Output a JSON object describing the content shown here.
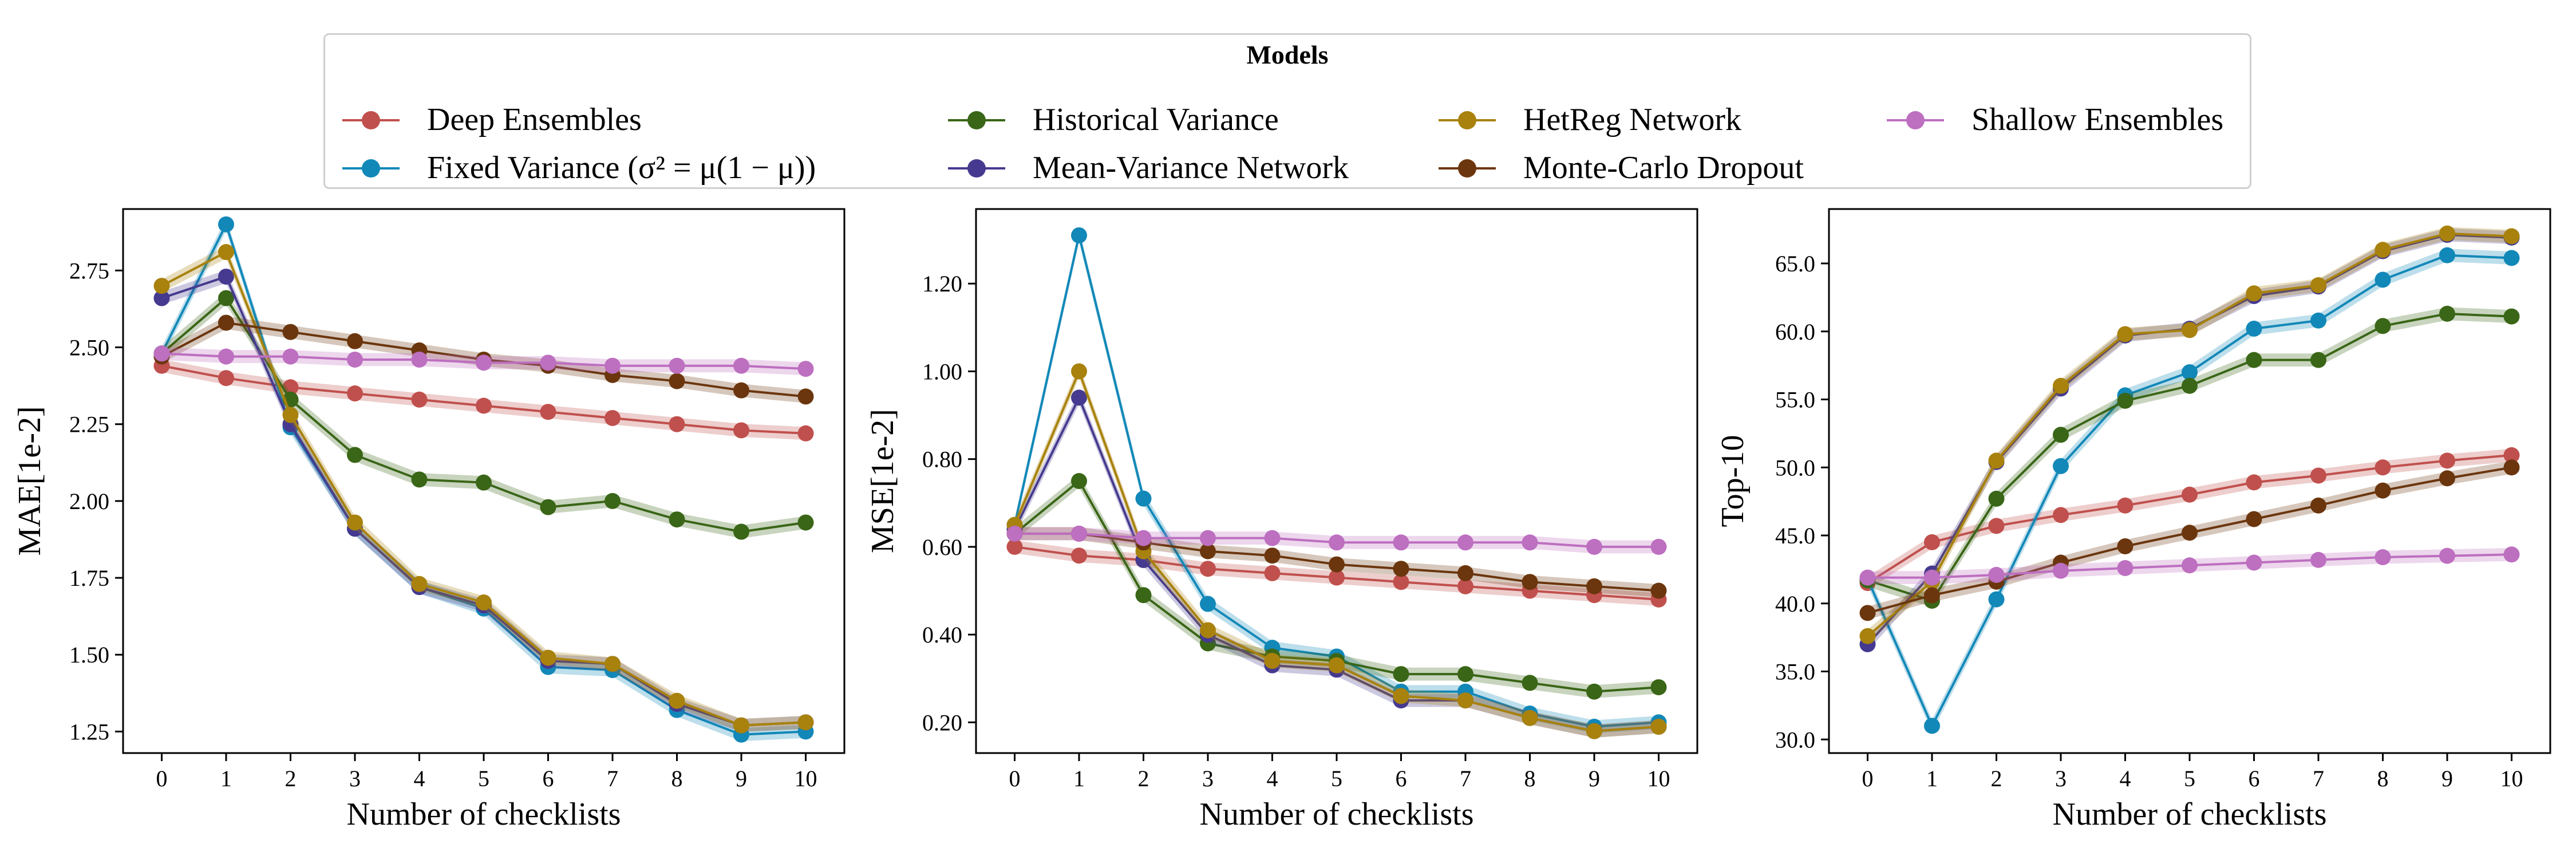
{
  "legend": {
    "title": "Models",
    "entries": [
      {
        "key": "deep",
        "label": "Deep Ensembles"
      },
      {
        "key": "fixed",
        "label": "Fixed Variance (σ² = μ(1 − μ))"
      },
      {
        "key": "hist",
        "label": "Historical Variance"
      },
      {
        "key": "mvn",
        "label": "Mean-Variance Network"
      },
      {
        "key": "hetreg",
        "label": "HetReg Network"
      },
      {
        "key": "mcd",
        "label": "Monte-Carlo Dropout"
      },
      {
        "key": "shallow",
        "label": "Shallow Ensembles"
      }
    ]
  },
  "colors": {
    "deep": "#c0504d",
    "fixed": "#1288b8",
    "hist": "#3a6617",
    "mvn": "#453a8f",
    "hetreg": "#a8820d",
    "mcd": "#6b360e",
    "shallow": "#bd6fc0"
  },
  "chart_data": [
    {
      "type": "line",
      "xlabel": "Number of checklists",
      "ylabel": "MAE[1e-2]",
      "x": [
        0,
        1,
        2,
        3,
        4,
        5,
        6,
        7,
        8,
        9,
        10
      ],
      "xticks": [
        "0",
        "1",
        "2",
        "3",
        "4",
        "5",
        "6",
        "7",
        "8",
        "9",
        "10"
      ],
      "ylim": [
        1.18,
        2.95
      ],
      "yticks": [
        1.25,
        1.5,
        1.75,
        2.0,
        2.25,
        2.5,
        2.75
      ],
      "ytick_labels": [
        "1.25",
        "1.50",
        "1.75",
        "2.00",
        "2.25",
        "2.50",
        "2.75"
      ],
      "series": [
        {
          "name": "Deep Ensembles",
          "key": "deep",
          "values": [
            2.44,
            2.4,
            2.37,
            2.35,
            2.33,
            2.31,
            2.29,
            2.27,
            2.25,
            2.23,
            2.22
          ]
        },
        {
          "name": "Fixed Variance (σ² = μ(1 − μ))",
          "key": "fixed",
          "values": [
            2.48,
            2.9,
            2.24,
            1.91,
            1.72,
            1.65,
            1.46,
            1.45,
            1.32,
            1.24,
            1.25
          ]
        },
        {
          "name": "Historical Variance",
          "key": "hist",
          "values": [
            2.48,
            2.66,
            2.33,
            2.15,
            2.07,
            2.06,
            1.98,
            2.0,
            1.94,
            1.9,
            1.93
          ]
        },
        {
          "name": "Mean-Variance Network",
          "key": "mvn",
          "values": [
            2.66,
            2.73,
            2.25,
            1.91,
            1.72,
            1.66,
            1.48,
            1.47,
            1.34,
            1.27,
            1.28
          ]
        },
        {
          "name": "HetReg Network",
          "key": "hetreg",
          "values": [
            2.7,
            2.81,
            2.28,
            1.93,
            1.73,
            1.67,
            1.49,
            1.47,
            1.35,
            1.27,
            1.28
          ]
        },
        {
          "name": "Monte-Carlo Dropout",
          "key": "mcd",
          "values": [
            2.47,
            2.58,
            2.55,
            2.52,
            2.49,
            2.46,
            2.44,
            2.41,
            2.39,
            2.36,
            2.34
          ]
        },
        {
          "name": "Shallow Ensembles",
          "key": "shallow",
          "values": [
            2.48,
            2.47,
            2.47,
            2.46,
            2.46,
            2.45,
            2.45,
            2.44,
            2.44,
            2.44,
            2.43
          ]
        }
      ]
    },
    {
      "type": "line",
      "xlabel": "Number of checklists",
      "ylabel": "MSE[1e-2]",
      "x": [
        0,
        1,
        2,
        3,
        4,
        5,
        6,
        7,
        8,
        9,
        10
      ],
      "xticks": [
        "0",
        "1",
        "2",
        "3",
        "4",
        "5",
        "6",
        "7",
        "8",
        "9",
        "10"
      ],
      "ylim": [
        0.13,
        1.37
      ],
      "yticks": [
        0.2,
        0.4,
        0.6,
        0.8,
        1.0,
        1.2
      ],
      "ytick_labels": [
        "0.20",
        "0.40",
        "0.60",
        "0.80",
        "1.00",
        "1.20"
      ],
      "series": [
        {
          "name": "Deep Ensembles",
          "key": "deep",
          "values": [
            0.6,
            0.58,
            0.57,
            0.55,
            0.54,
            0.53,
            0.52,
            0.51,
            0.5,
            0.49,
            0.48
          ]
        },
        {
          "name": "Fixed Variance (σ² = μ(1 − μ))",
          "key": "fixed",
          "values": [
            0.65,
            1.31,
            0.71,
            0.47,
            0.37,
            0.35,
            0.27,
            0.27,
            0.22,
            0.19,
            0.2
          ]
        },
        {
          "name": "Historical Variance",
          "key": "hist",
          "values": [
            0.63,
            0.75,
            0.49,
            0.38,
            0.35,
            0.34,
            0.31,
            0.31,
            0.29,
            0.27,
            0.28
          ]
        },
        {
          "name": "Mean-Variance Network",
          "key": "mvn",
          "values": [
            0.64,
            0.94,
            0.57,
            0.4,
            0.33,
            0.32,
            0.25,
            0.25,
            0.21,
            0.18,
            0.19
          ]
        },
        {
          "name": "HetReg Network",
          "key": "hetreg",
          "values": [
            0.65,
            1.0,
            0.59,
            0.41,
            0.34,
            0.33,
            0.26,
            0.25,
            0.21,
            0.18,
            0.19
          ]
        },
        {
          "name": "Monte-Carlo Dropout",
          "key": "mcd",
          "values": [
            0.63,
            0.63,
            0.61,
            0.59,
            0.58,
            0.56,
            0.55,
            0.54,
            0.52,
            0.51,
            0.5
          ]
        },
        {
          "name": "Shallow Ensembles",
          "key": "shallow",
          "values": [
            0.63,
            0.63,
            0.62,
            0.62,
            0.62,
            0.61,
            0.61,
            0.61,
            0.61,
            0.6,
            0.6
          ]
        }
      ]
    },
    {
      "type": "line",
      "xlabel": "Number of checklists",
      "ylabel": "Top-10",
      "x": [
        0,
        1,
        2,
        3,
        4,
        5,
        6,
        7,
        8,
        9,
        10
      ],
      "xticks": [
        "0",
        "1",
        "2",
        "3",
        "4",
        "5",
        "6",
        "7",
        "8",
        "9",
        "10"
      ],
      "ylim": [
        29.0,
        69.0
      ],
      "yticks": [
        30,
        35,
        40,
        45,
        50,
        55,
        60,
        65
      ],
      "ytick_labels": [
        "30.0",
        "35.0",
        "40.0",
        "45.0",
        "50.0",
        "55.0",
        "60.0",
        "65.0"
      ],
      "series": [
        {
          "name": "Deep Ensembles",
          "key": "deep",
          "values": [
            41.5,
            44.5,
            45.7,
            46.5,
            47.2,
            48.0,
            48.9,
            49.4,
            50.0,
            50.5,
            50.9
          ]
        },
        {
          "name": "Fixed Variance (σ² = μ(1 − μ))",
          "key": "fixed",
          "values": [
            41.8,
            31.0,
            40.3,
            50.1,
            55.3,
            57.0,
            60.2,
            60.8,
            63.8,
            65.6,
            65.4
          ]
        },
        {
          "name": "Historical Variance",
          "key": "hist",
          "values": [
            41.7,
            40.2,
            47.7,
            52.4,
            54.9,
            56.0,
            57.9,
            57.9,
            60.4,
            61.3,
            61.1
          ]
        },
        {
          "name": "Mean-Variance Network",
          "key": "mvn",
          "values": [
            37.0,
            42.2,
            50.4,
            55.8,
            59.7,
            60.2,
            62.6,
            63.3,
            65.9,
            67.1,
            66.9
          ]
        },
        {
          "name": "HetReg Network",
          "key": "hetreg",
          "values": [
            37.6,
            41.6,
            50.5,
            56.0,
            59.8,
            60.1,
            62.8,
            63.4,
            66.0,
            67.2,
            67.0
          ]
        },
        {
          "name": "Monte-Carlo Dropout",
          "key": "mcd",
          "values": [
            39.3,
            40.6,
            41.6,
            43.0,
            44.2,
            45.2,
            46.2,
            47.2,
            48.3,
            49.2,
            50.0
          ]
        },
        {
          "name": "Shallow Ensembles",
          "key": "shallow",
          "values": [
            41.9,
            41.9,
            42.1,
            42.4,
            42.6,
            42.8,
            43.0,
            43.2,
            43.4,
            43.5,
            43.6
          ]
        }
      ]
    }
  ]
}
